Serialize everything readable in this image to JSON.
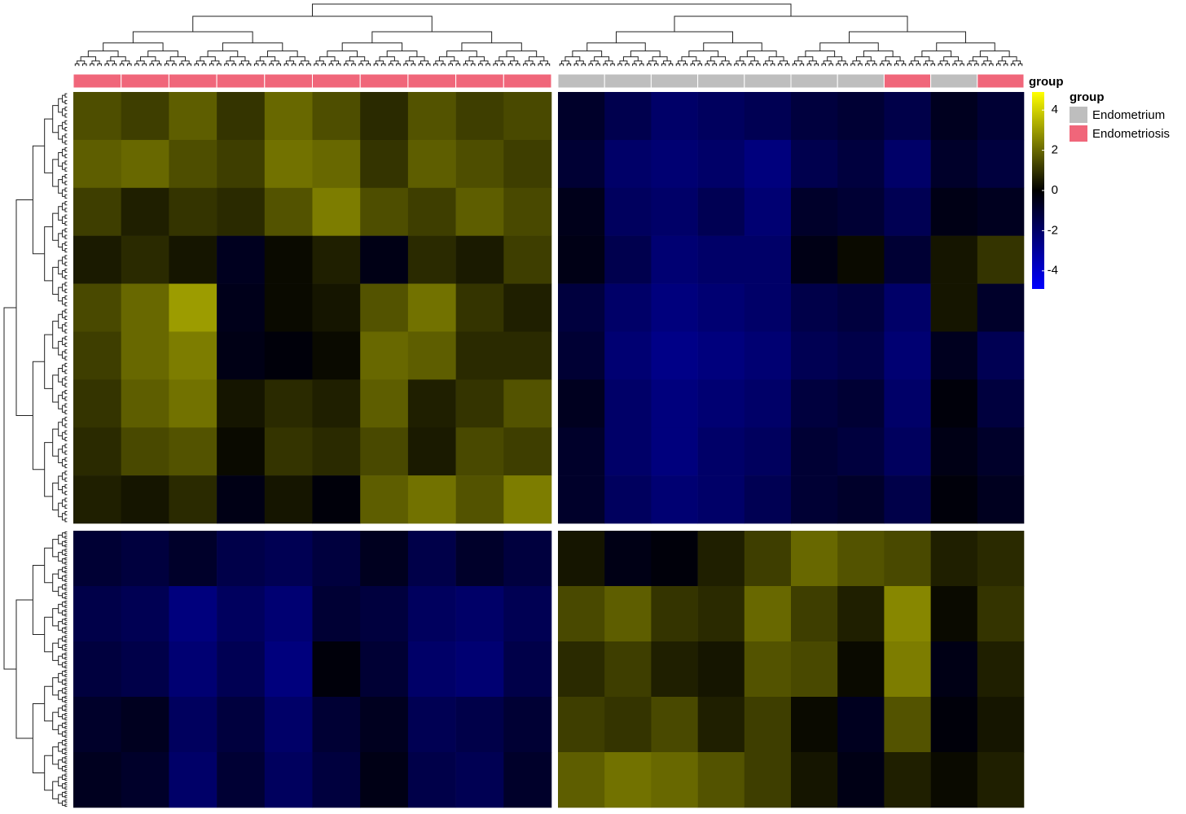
{
  "chart_data": {
    "type": "heatmap",
    "annotation_label": "group",
    "legend_title": "group",
    "series": [
      {
        "name": "Endometrium",
        "color": "#BEBEBE"
      },
      {
        "name": "Endometriosis",
        "color": "#F0667A"
      }
    ],
    "column_groups": [
      "Endometriosis",
      "Endometriosis",
      "Endometriosis",
      "Endometriosis",
      "Endometriosis",
      "Endometriosis",
      "Endometriosis",
      "Endometriosis",
      "Endometriosis",
      "Endometriosis",
      "Endometrium",
      "Endometrium",
      "Endometrium",
      "Endometrium",
      "Endometrium",
      "Endometrium",
      "Endometrium",
      "Endometriosis",
      "Endometrium",
      "Endometriosis"
    ],
    "values": [
      [
        1.5,
        1.2,
        1.8,
        1.0,
        2.0,
        1.5,
        0.8,
        1.6,
        1.2,
        1.4,
        -0.8,
        -1.5,
        -2.0,
        -1.8,
        -1.6,
        -1.2,
        -1.0,
        -1.4,
        -0.6,
        -1.0
      ],
      [
        1.8,
        2.0,
        1.5,
        1.2,
        2.2,
        2.0,
        1.0,
        1.8,
        1.5,
        1.2,
        -1.0,
        -2.0,
        -2.2,
        -2.0,
        -2.4,
        -1.5,
        -1.2,
        -2.0,
        -0.8,
        -1.2
      ],
      [
        1.2,
        0.6,
        1.0,
        0.8,
        1.6,
        2.4,
        1.5,
        1.2,
        1.8,
        1.4,
        -0.5,
        -1.8,
        -2.0,
        -1.6,
        -2.2,
        -0.8,
        -1.0,
        -1.6,
        -0.4,
        -0.6
      ],
      [
        0.5,
        0.8,
        0.4,
        -0.6,
        0.2,
        0.6,
        -0.4,
        0.8,
        0.5,
        1.2,
        -0.4,
        -1.5,
        -2.2,
        -2.0,
        -2.0,
        -0.4,
        0.2,
        -1.0,
        0.4,
        1.0
      ],
      [
        1.4,
        2.0,
        3.0,
        -0.5,
        0.2,
        0.4,
        1.6,
        2.2,
        1.0,
        0.6,
        -1.2,
        -2.0,
        -2.4,
        -2.2,
        -2.0,
        -1.4,
        -1.2,
        -2.0,
        0.4,
        -0.8
      ],
      [
        1.2,
        2.0,
        2.4,
        -0.4,
        -0.2,
        0.2,
        2.0,
        1.8,
        0.8,
        0.8,
        -1.0,
        -2.2,
        -2.6,
        -2.4,
        -2.2,
        -1.6,
        -1.4,
        -2.2,
        -0.6,
        -1.6
      ],
      [
        1.0,
        1.8,
        2.2,
        0.4,
        0.8,
        0.6,
        1.8,
        0.6,
        1.0,
        1.6,
        -0.6,
        -2.0,
        -2.4,
        -2.2,
        -2.0,
        -1.2,
        -1.0,
        -2.0,
        -0.2,
        -1.2
      ],
      [
        0.8,
        1.4,
        1.6,
        0.2,
        1.0,
        0.8,
        1.4,
        0.5,
        1.4,
        1.2,
        -0.8,
        -2.0,
        -2.4,
        -2.0,
        -1.8,
        -1.0,
        -1.2,
        -1.8,
        -0.4,
        -0.8
      ],
      [
        0.6,
        0.4,
        0.8,
        -0.4,
        0.4,
        -0.2,
        1.8,
        2.2,
        1.6,
        2.4,
        -0.8,
        -1.8,
        -2.2,
        -2.0,
        -1.6,
        -1.0,
        -0.8,
        -1.4,
        -0.2,
        -0.6
      ],
      [
        -1.0,
        -1.2,
        -0.8,
        -1.4,
        -1.6,
        -1.2,
        -0.6,
        -1.4,
        -0.8,
        -1.2,
        0.4,
        -0.4,
        -0.2,
        0.6,
        1.2,
        2.0,
        1.6,
        1.4,
        0.6,
        0.8
      ],
      [
        -1.4,
        -1.6,
        -2.4,
        -1.8,
        -2.2,
        -1.0,
        -1.2,
        -1.8,
        -2.0,
        -1.6,
        1.4,
        1.8,
        1.0,
        0.8,
        2.0,
        1.2,
        0.6,
        2.6,
        0.2,
        1.0
      ],
      [
        -1.2,
        -1.4,
        -2.2,
        -1.6,
        -2.4,
        -0.2,
        -1.0,
        -2.0,
        -2.2,
        -1.4,
        0.8,
        1.2,
        0.6,
        0.4,
        1.6,
        1.4,
        0.2,
        2.4,
        -0.4,
        0.6
      ],
      [
        -0.8,
        -0.6,
        -1.8,
        -1.2,
        -2.0,
        -1.0,
        -0.6,
        -1.6,
        -1.4,
        -1.0,
        1.2,
        1.0,
        1.4,
        0.6,
        1.2,
        0.2,
        -0.6,
        1.6,
        -0.2,
        0.4
      ],
      [
        -0.6,
        -0.8,
        -2.0,
        -1.0,
        -1.8,
        -1.2,
        -0.4,
        -1.4,
        -1.6,
        -0.8,
        1.8,
        2.2,
        2.0,
        1.6,
        1.2,
        0.4,
        -0.4,
        0.6,
        0.2,
        0.6
      ]
    ],
    "colorbar": {
      "colors": [
        "#0000FF",
        "#000000",
        "#FFFF00"
      ],
      "lim": [
        -4.9,
        4.9
      ],
      "ticks": [
        4,
        2,
        0,
        -2,
        -4
      ]
    }
  }
}
